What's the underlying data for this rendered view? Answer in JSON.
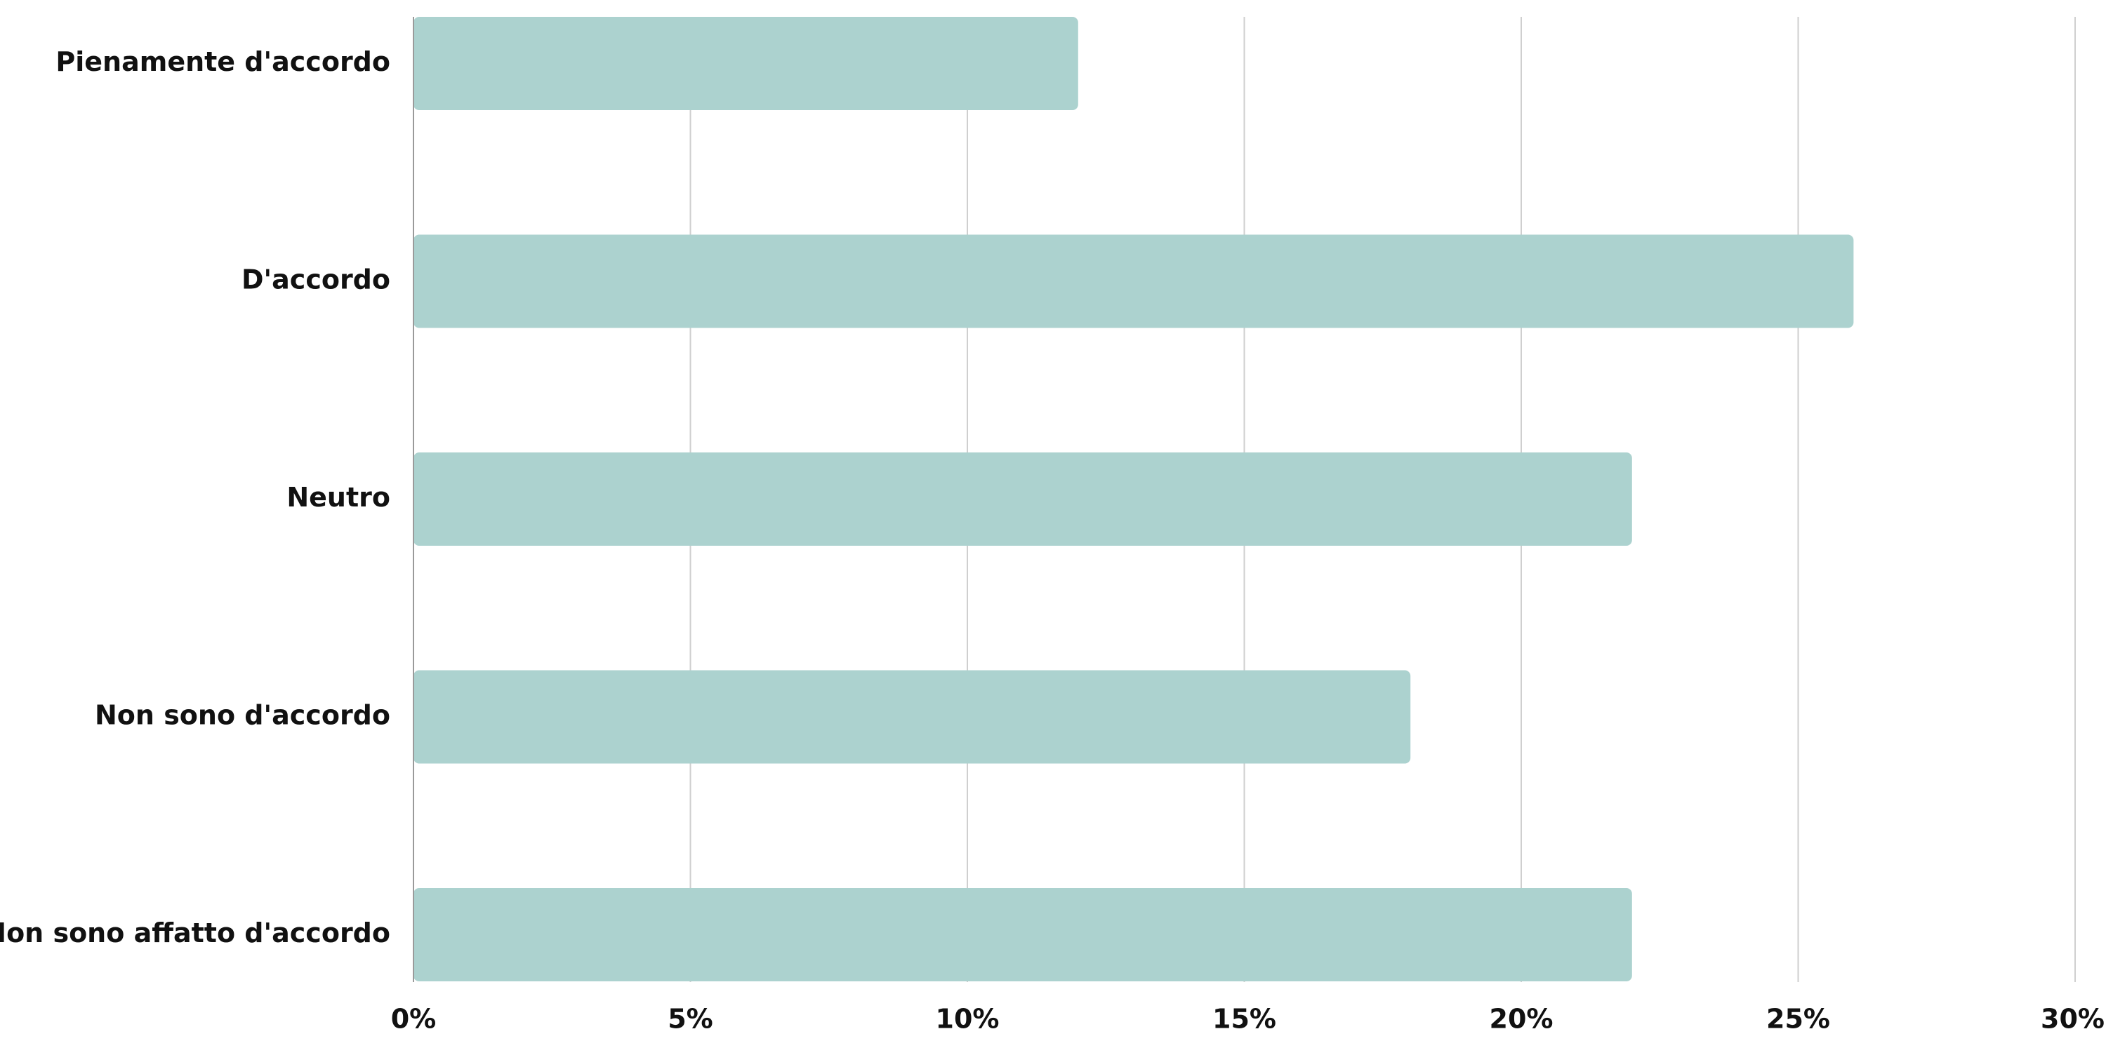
{
  "chart_data": {
    "type": "bar",
    "orientation": "horizontal",
    "categories": [
      "Pienamente d'accordo",
      "D'accordo",
      "Neutro",
      "Non sono d'accordo",
      "Non sono affatto d'accordo"
    ],
    "values": [
      12,
      26,
      22,
      18,
      22
    ],
    "value_unit": "%",
    "xlim": [
      0,
      30
    ],
    "xticks": [
      0,
      5,
      10,
      15,
      20,
      25,
      30
    ],
    "xtick_labels": [
      "0%",
      "5%",
      "10%",
      "15%",
      "20%",
      "25%",
      "30%"
    ],
    "title": "",
    "xlabel": "",
    "ylabel": "",
    "grid": "vertical",
    "legend": "none",
    "bar_color": "#acd2cf",
    "grid_color": "#cfcfcf",
    "axis_color": "#9a9a9a",
    "text_color": "#111111"
  }
}
